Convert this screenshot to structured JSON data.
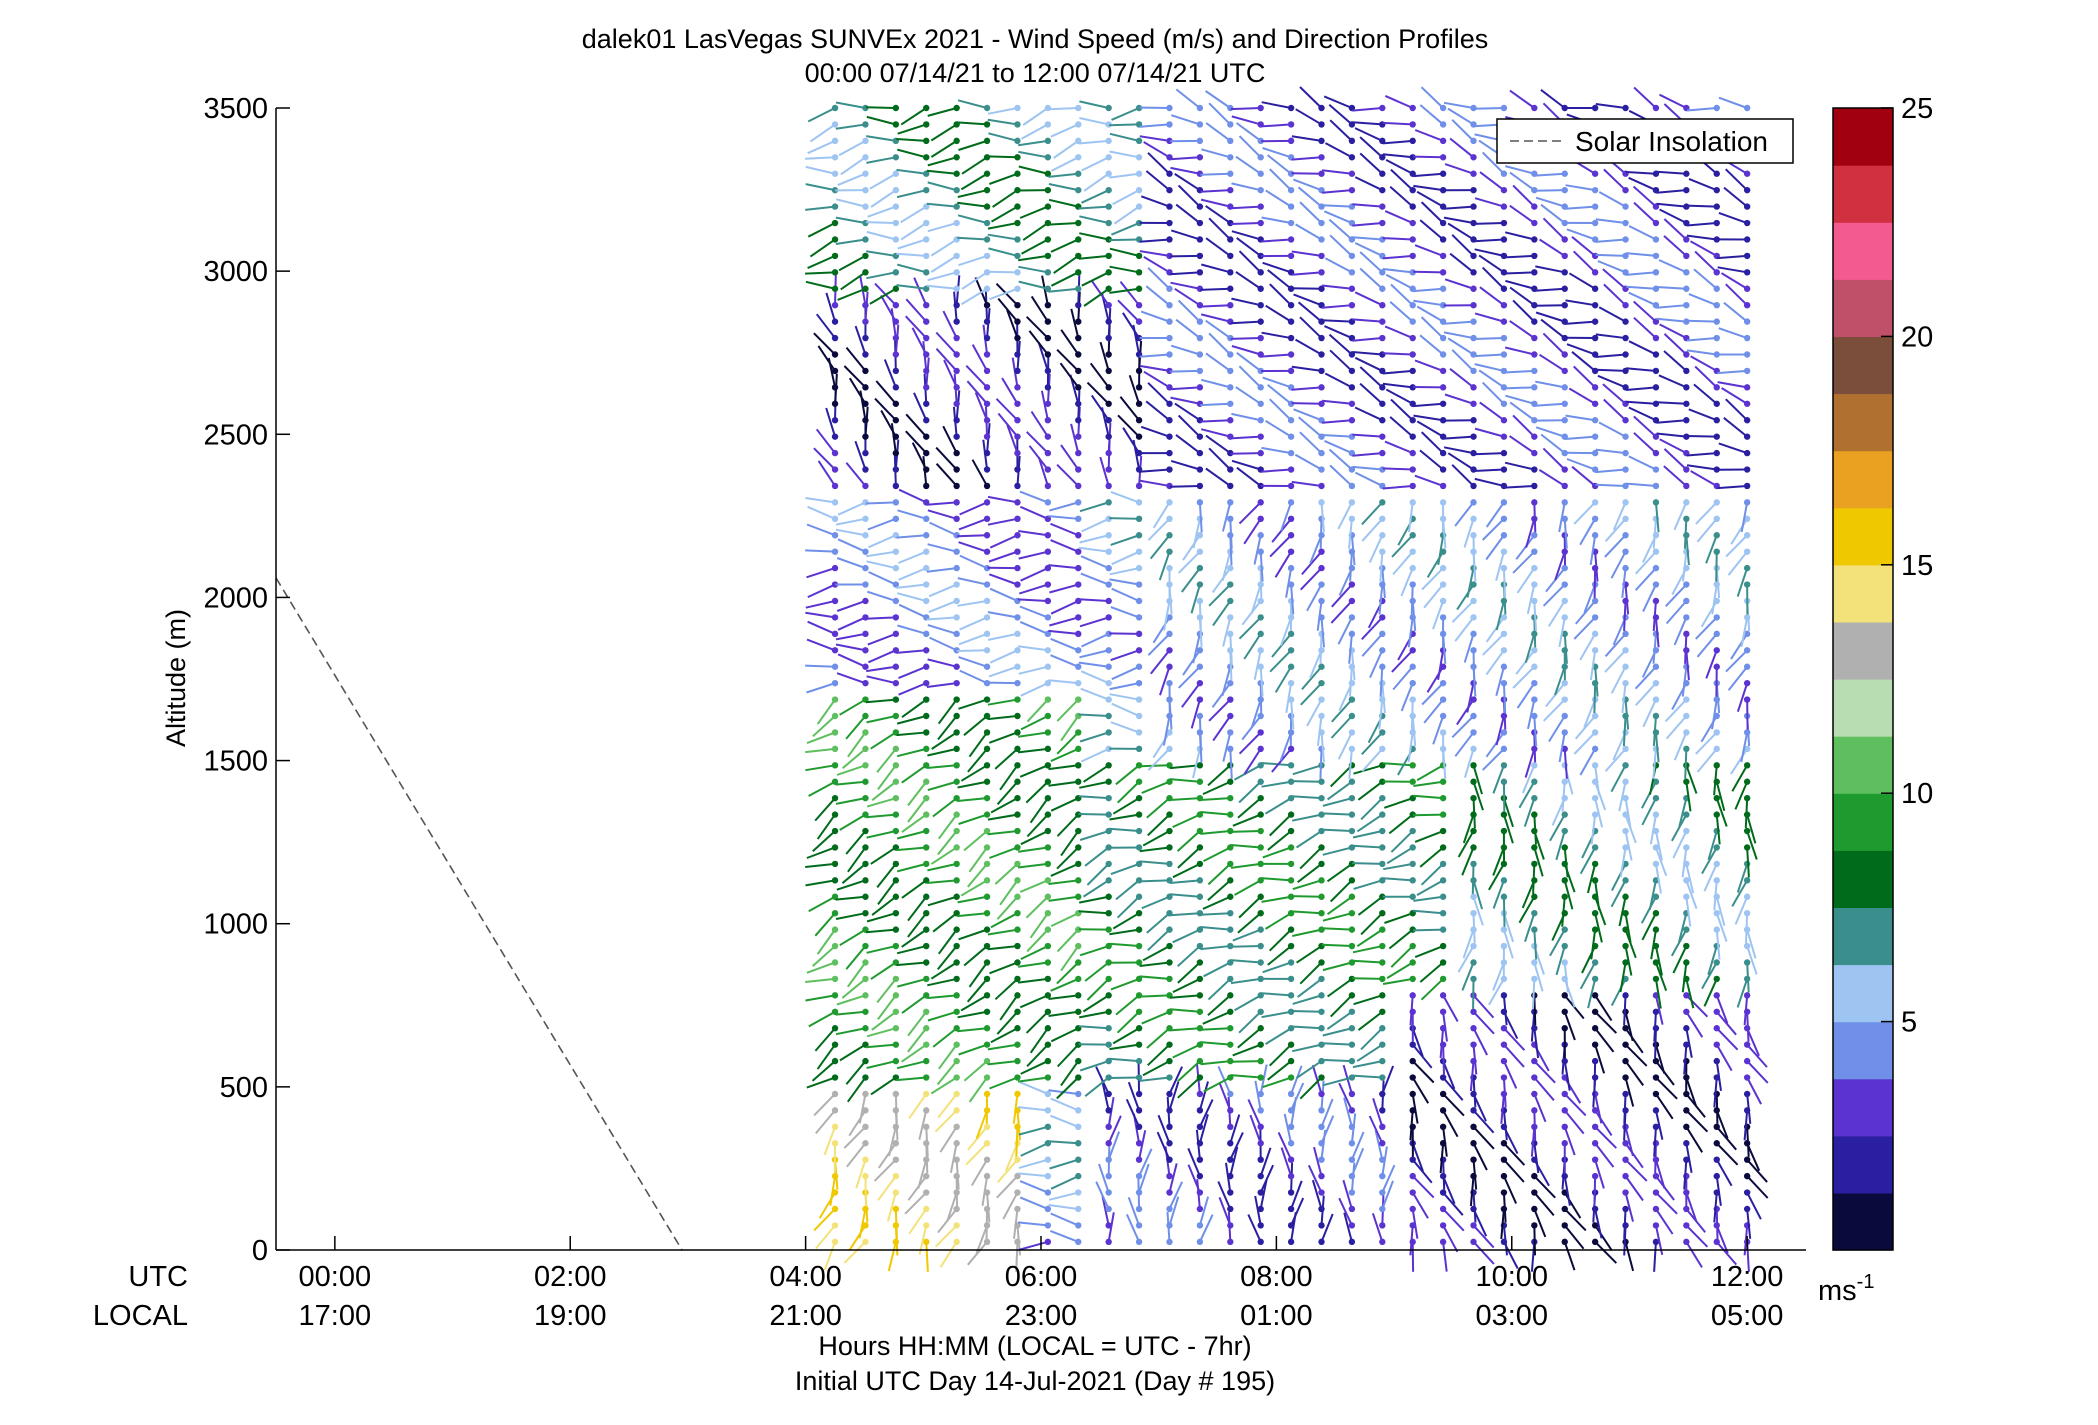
{
  "chart_data": {
    "type": "wind_barb_profile",
    "title": "dalek01 LasVegas SUNVEx 2021 - Wind Speed (m/s) and Direction Profiles",
    "subtitle": "00:00 07/14/21 to 12:00 07/14/21  UTC",
    "ylabel": "Altitude (m)",
    "xlabel": "Hours HH:MM  (LOCAL = UTC - 7hr)",
    "footer": "Initial UTC Day 14-Jul-2021 (Day # 195)",
    "xaxis_row_labels": [
      "UTC",
      "LOCAL"
    ],
    "x_ticks_utc": [
      "00:00",
      "02:00",
      "04:00",
      "06:00",
      "08:00",
      "10:00",
      "12:00"
    ],
    "x_ticks_local": [
      "17:00",
      "19:00",
      "21:00",
      "23:00",
      "01:00",
      "03:00",
      "05:00"
    ],
    "x_tick_hours": [
      0,
      2,
      4,
      6,
      8,
      10,
      12
    ],
    "xlim_hours": [
      -0.5,
      12.5
    ],
    "y_ticks": [
      0,
      500,
      1000,
      1500,
      2000,
      2500,
      3000,
      3500
    ],
    "y_tick_labels": [
      "0",
      "500",
      "1000",
      "1500",
      "2000",
      "2500",
      "3000",
      "3500"
    ],
    "ylim": [
      0,
      3500
    ],
    "legend": {
      "label": "Solar Insolation",
      "placement": "top-right"
    },
    "solar_insolation_line": {
      "x_hours": [
        -0.5,
        2.95
      ],
      "altitude": [
        2060,
        0
      ]
    },
    "colorbar": {
      "ticks": [
        5,
        10,
        15,
        20,
        25
      ],
      "tick_labels": [
        "5",
        "10",
        "15",
        "20",
        "25"
      ],
      "range": [
        0,
        25
      ],
      "unit_label": "ms",
      "unit_exponent": "-1",
      "colors": [
        "#0a0a3c",
        "#2a1fa0",
        "#5b33d0",
        "#6f8fe8",
        "#9ec4f2",
        "#3a8f8c",
        "#006b1a",
        "#1f9a2f",
        "#5dbf5d",
        "#b8ddb2",
        "#b0b0b0",
        "#f3e27a",
        "#f0c800",
        "#eaa020",
        "#b07030",
        "#7a4e3a",
        "#c0506a",
        "#f25a90",
        "#d03040",
        "#a00010"
      ]
    },
    "barb_start_hours": 4.25,
    "barb_end_hours": 12.0,
    "barb_data_top_altitude": 3500,
    "speed_direction_regions": [
      {
        "hours": [
          4.25,
          6.0
        ],
        "altitude": [
          0,
          500
        ],
        "speed_ms": 14,
        "direction_deg": 200
      },
      {
        "hours": [
          4.25,
          6.5
        ],
        "altitude": [
          500,
          1700
        ],
        "speed_ms": 9,
        "direction_deg": 240
      },
      {
        "hours": [
          4.25,
          6.5
        ],
        "altitude": [
          1700,
          2300
        ],
        "speed_ms": 4,
        "direction_deg": 270
      },
      {
        "hours": [
          4.25,
          7.0
        ],
        "altitude": [
          2300,
          2900
        ],
        "speed_ms": 2,
        "direction_deg": 340
      },
      {
        "hours": [
          4.25,
          7.0
        ],
        "altitude": [
          2900,
          3500
        ],
        "speed_ms": 7,
        "direction_deg": 260
      },
      {
        "hours": [
          6.5,
          9.0
        ],
        "altitude": [
          0,
          500
        ],
        "speed_ms": 3,
        "direction_deg": 0
      },
      {
        "hours": [
          6.5,
          9.5
        ],
        "altitude": [
          500,
          1500
        ],
        "speed_ms": 8,
        "direction_deg": 250
      },
      {
        "hours": [
          7.0,
          12.0
        ],
        "altitude": [
          1500,
          2300
        ],
        "speed_ms": 5,
        "direction_deg": 200
      },
      {
        "hours": [
          7.0,
          12.0
        ],
        "altitude": [
          2300,
          3500
        ],
        "speed_ms": 3,
        "direction_deg": 290
      },
      {
        "hours": [
          9.0,
          12.0
        ],
        "altitude": [
          0,
          800
        ],
        "speed_ms": 2,
        "direction_deg": 160
      },
      {
        "hours": [
          9.5,
          12.0
        ],
        "altitude": [
          800,
          1500
        ],
        "speed_ms": 7,
        "direction_deg": 185
      }
    ]
  }
}
